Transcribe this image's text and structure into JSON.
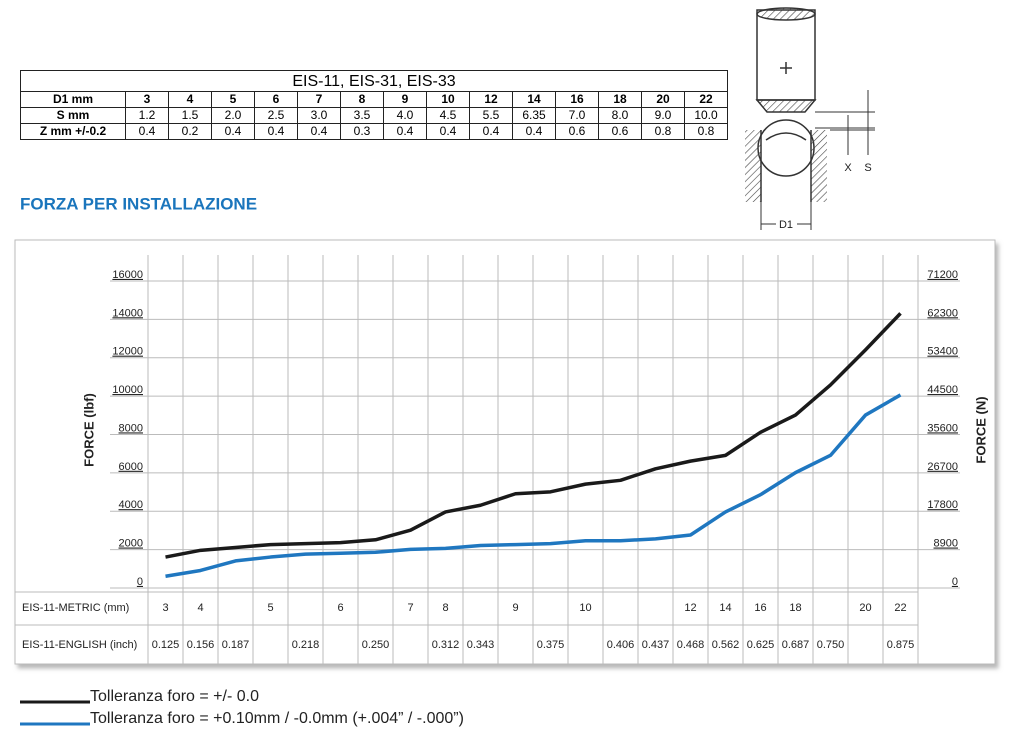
{
  "table": {
    "title": "EIS-11, EIS-31, EIS-33",
    "rows": [
      [
        "D1 mm",
        "3",
        "4",
        "5",
        "6",
        "7",
        "8",
        "9",
        "10",
        "12",
        "14",
        "16",
        "18",
        "20",
        "22"
      ],
      [
        "S mm",
        "1.2",
        "1.5",
        "2.0",
        "2.5",
        "3.0",
        "3.5",
        "4.0",
        "4.5",
        "5.5",
        "6.35",
        "7.0",
        "8.0",
        "9.0",
        "10.0"
      ],
      [
        "Z mm +/-0.2",
        "0.4",
        "0.2",
        "0.4",
        "0.4",
        "0.4",
        "0.3",
        "0.4",
        "0.4",
        "0.4",
        "0.4",
        "0.6",
        "0.6",
        "0.8",
        "0.8"
      ]
    ]
  },
  "diagram": {
    "labels": [
      "X",
      "S",
      "D1"
    ]
  },
  "heading": "FORZA PER INSTALLAZIONE",
  "chart_data": {
    "type": "line",
    "y_label": "FORCE (lbf)",
    "y2_label": "FORCE (N)",
    "metric_label": "EIS-11-METRIC (mm)",
    "metric": [
      3,
      4,
      null,
      5,
      null,
      6,
      null,
      7,
      8,
      null,
      9,
      null,
      10,
      null,
      null,
      12,
      14,
      16,
      18,
      null,
      20,
      22
    ],
    "english_label": "EIS-11-ENGLISH (inch)",
    "english": [
      "0.125",
      "0.156",
      "0.187",
      null,
      "0.218",
      null,
      "0.250",
      null,
      "0.312",
      "0.343",
      null,
      "0.375",
      null,
      "0.406",
      "0.437",
      "0.468",
      "0.562",
      "0.625",
      "0.687",
      "0.750",
      null,
      "0.875"
    ],
    "ylim": [
      0,
      16000
    ],
    "yticks": [
      0,
      2000,
      4000,
      6000,
      8000,
      10000,
      12000,
      14000,
      16000
    ],
    "y2lim": [
      0,
      71200
    ],
    "y2ticks": [
      0,
      8900,
      17800,
      26700,
      35600,
      44500,
      53400,
      62300,
      71200
    ],
    "grid": true,
    "series": [
      {
        "name": "Tolleranza foro = +/- 0.0",
        "color": "#1a1a1a",
        "values": [
          1300,
          1650,
          1800,
          1950,
          2000,
          2050,
          2200,
          2700,
          3650,
          4000,
          4600,
          4700,
          5100,
          5300,
          5900,
          6300,
          6600,
          7800,
          8700,
          10270,
          12100,
          14000
        ]
      },
      {
        "name": "Tolleranza foro = +0.10mm / -0.0mm (+.004” / -.000”)",
        "color": "#1f77c0",
        "values": [
          300,
          600,
          1100,
          1300,
          1450,
          1500,
          1550,
          1700,
          1750,
          1900,
          1950,
          2000,
          2150,
          2150,
          2250,
          2450,
          3650,
          4550,
          5700,
          6600,
          8700,
          9750
        ]
      }
    ]
  }
}
